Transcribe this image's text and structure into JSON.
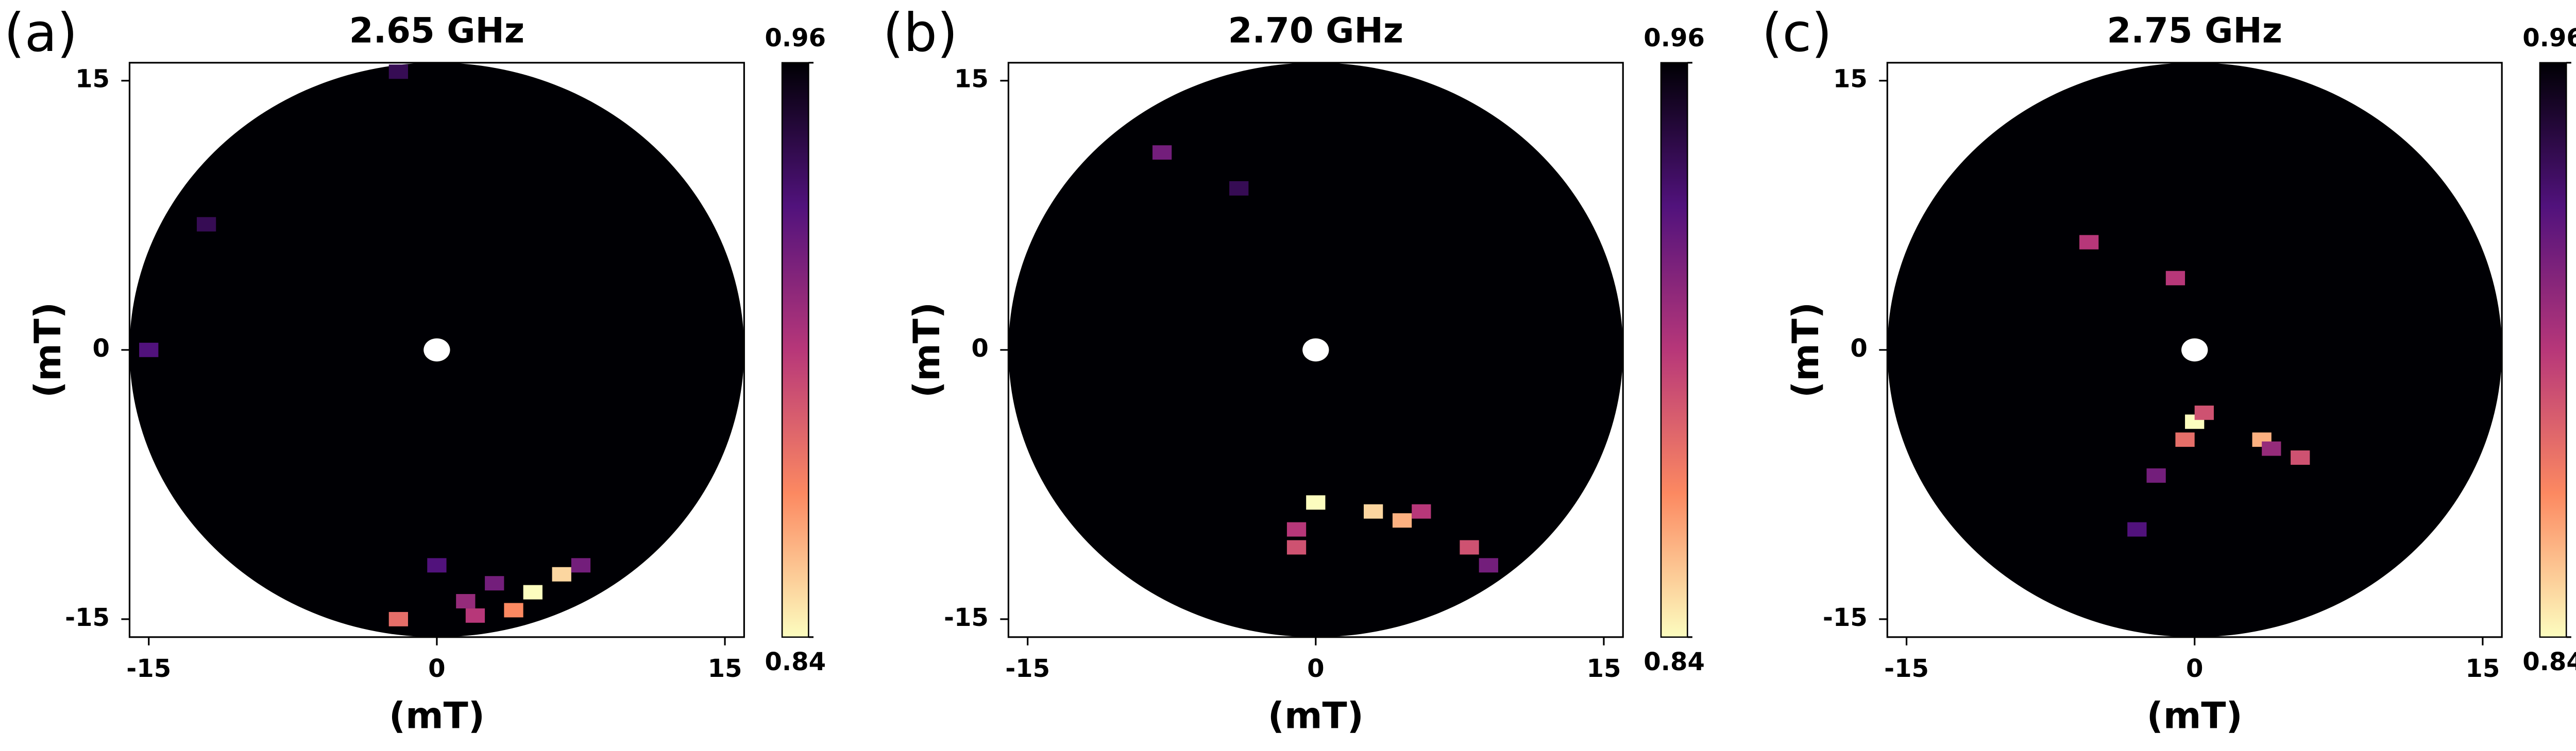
{
  "chart_data": [
    {
      "type": "polar-heatmap",
      "panel_label": "(a)",
      "title": "2.65 GHz",
      "xlabel": "(mT)",
      "ylabel": "(mT)",
      "xlim": [
        -16,
        16
      ],
      "ylim": [
        -16,
        16
      ],
      "xticks": [
        -15,
        0,
        15
      ],
      "yticks": [
        -15,
        0,
        15
      ],
      "clim": [
        0.84,
        0.96
      ],
      "cticks": [
        0.84,
        0.96
      ],
      "x": [
        5,
        6.5,
        4,
        2,
        3,
        -2,
        0,
        1.5,
        -12,
        -15,
        -2,
        7.5
      ],
      "y": [
        -13.5,
        -12.5,
        -14.5,
        -14.8,
        -13,
        -15,
        -12,
        -14,
        7,
        0,
        15.5,
        -12
      ],
      "values": [
        0.84,
        0.85,
        0.87,
        0.9,
        0.92,
        0.88,
        0.93,
        0.91,
        0.94,
        0.93,
        0.94,
        0.92
      ]
    },
    {
      "type": "polar-heatmap",
      "panel_label": "(b)",
      "title": "2.70 GHz",
      "xlabel": "(mT)",
      "ylabel": "(mT)",
      "xlim": [
        -16,
        16
      ],
      "ylim": [
        -16,
        16
      ],
      "xticks": [
        -15,
        0,
        15
      ],
      "yticks": [
        -15,
        0,
        15
      ],
      "clim": [
        0.84,
        0.96
      ],
      "cticks": [
        0.84,
        0.96
      ],
      "x": [
        0,
        -1,
        -1,
        3,
        4.5,
        5.5,
        8,
        9,
        -8,
        -4
      ],
      "y": [
        -8.5,
        -11,
        -10,
        -9,
        -9.5,
        -9,
        -11,
        -12,
        11,
        9
      ],
      "values": [
        0.84,
        0.89,
        0.9,
        0.85,
        0.86,
        0.9,
        0.89,
        0.92,
        0.92,
        0.94
      ]
    },
    {
      "type": "polar-heatmap",
      "panel_label": "(c)",
      "title": "2.75 GHz",
      "xlabel": "(mT)",
      "ylabel": "(mT)",
      "xlim": [
        -16,
        16
      ],
      "ylim": [
        -16,
        16
      ],
      "xticks": [
        -15,
        0,
        15
      ],
      "yticks": [
        -15,
        0,
        15
      ],
      "clim": [
        0.84,
        0.96
      ],
      "cticks": [
        0.84,
        0.96
      ],
      "x": [
        0,
        -0.5,
        0.5,
        -2,
        -3,
        3.5,
        5.5,
        -5.5,
        -1,
        4
      ],
      "y": [
        -4,
        -5,
        -3.5,
        -7,
        -10,
        -5,
        -6,
        6,
        4,
        -5.5
      ],
      "values": [
        0.84,
        0.88,
        0.89,
        0.92,
        0.93,
        0.86,
        0.89,
        0.9,
        0.9,
        0.91
      ]
    }
  ]
}
